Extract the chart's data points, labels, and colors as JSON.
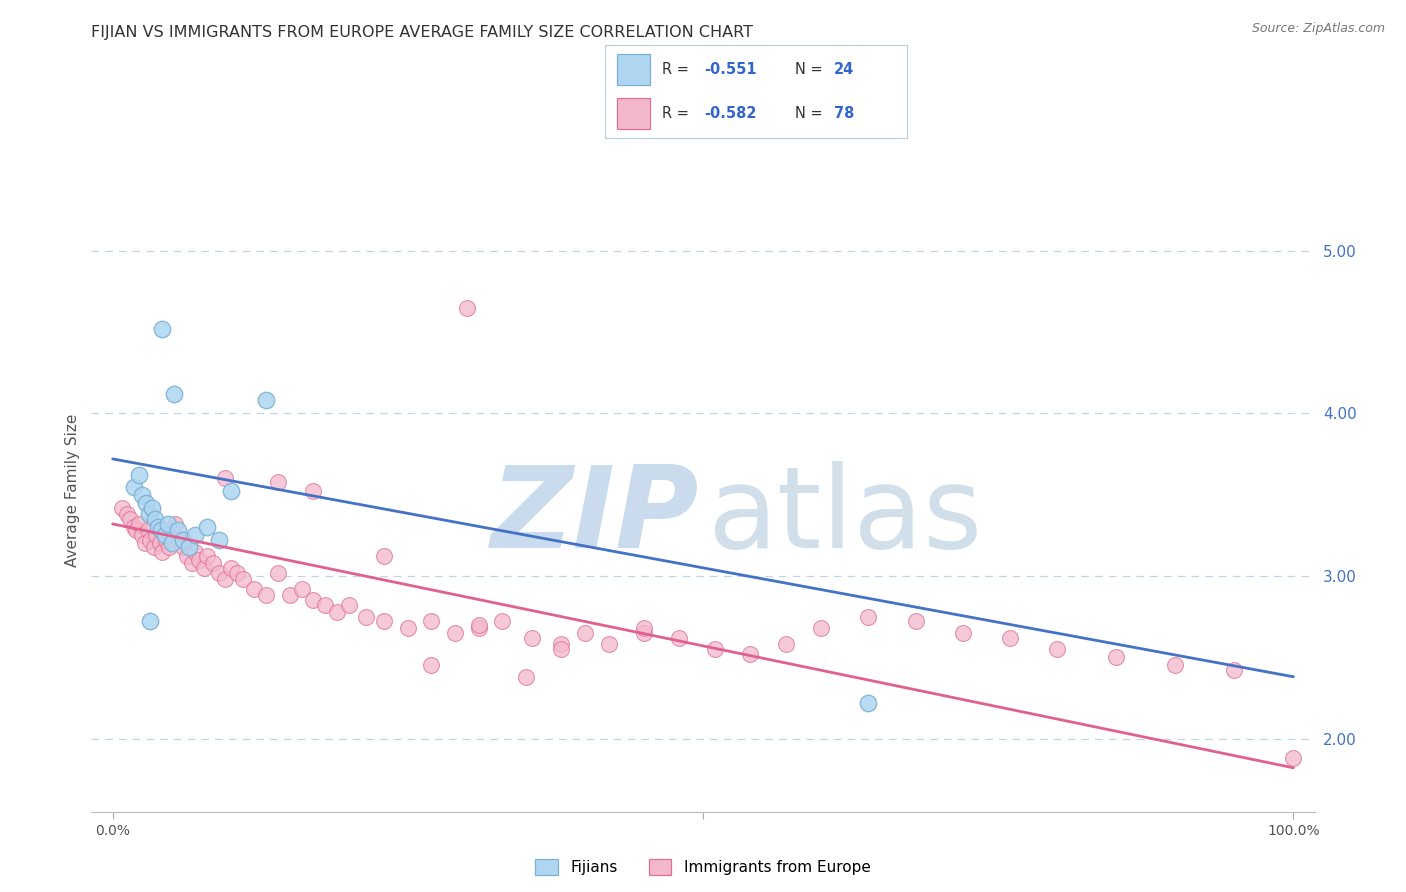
{
  "title": "FIJIAN VS IMMIGRANTS FROM EUROPE AVERAGE FAMILY SIZE CORRELATION CHART",
  "source": "Source: ZipAtlas.com",
  "ylabel": "Average Family Size",
  "yticks_right": [
    2.0,
    3.0,
    4.0,
    5.0
  ],
  "ylim": [
    1.55,
    5.5
  ],
  "xlim": [
    -0.018,
    1.018
  ],
  "fijian_color": "#7bafd4",
  "fijian_fill": "#aed6f1",
  "europe_color": "#e07095",
  "europe_fill": "#f4b8cc",
  "trendline_blue": "#4472c4",
  "trendline_pink": "#e06090",
  "watermark_zip_color": "#c5d8ec",
  "watermark_atlas_color": "#b8cfe0",
  "background_color": "#ffffff",
  "grid_color": "#c0d4e8",
  "label_fijians": "Fijians",
  "label_europe": "Immigrants from Europe",
  "blue_line_y0": 3.72,
  "blue_line_y1": 2.38,
  "pink_line_y0": 3.32,
  "pink_line_y1": 1.82,
  "fijian_x": [
    0.018,
    0.022,
    0.025,
    0.028,
    0.031,
    0.033,
    0.036,
    0.038,
    0.041,
    0.044,
    0.047,
    0.05,
    0.055,
    0.06,
    0.065,
    0.07,
    0.08,
    0.09,
    0.1,
    0.13,
    0.032,
    0.042,
    0.052,
    0.64
  ],
  "fijian_y": [
    3.55,
    3.62,
    3.5,
    3.45,
    3.38,
    3.42,
    3.35,
    3.3,
    3.28,
    3.25,
    3.32,
    3.2,
    3.28,
    3.22,
    3.18,
    3.25,
    3.3,
    3.22,
    3.52,
    4.08,
    2.72,
    4.52,
    4.12,
    2.22
  ],
  "europe_x": [
    0.008,
    0.012,
    0.015,
    0.018,
    0.02,
    0.022,
    0.025,
    0.027,
    0.03,
    0.032,
    0.035,
    0.037,
    0.04,
    0.042,
    0.045,
    0.048,
    0.05,
    0.053,
    0.056,
    0.06,
    0.063,
    0.067,
    0.07,
    0.073,
    0.077,
    0.08,
    0.085,
    0.09,
    0.095,
    0.1,
    0.105,
    0.11,
    0.12,
    0.13,
    0.14,
    0.15,
    0.16,
    0.17,
    0.18,
    0.19,
    0.2,
    0.215,
    0.23,
    0.25,
    0.27,
    0.29,
    0.31,
    0.33,
    0.355,
    0.38,
    0.4,
    0.42,
    0.45,
    0.48,
    0.51,
    0.54,
    0.57,
    0.6,
    0.64,
    0.68,
    0.72,
    0.76,
    0.8,
    0.85,
    0.9,
    0.95,
    1.0,
    0.095,
    0.14,
    0.17,
    0.23,
    0.31,
    0.38,
    0.45,
    0.3,
    0.27,
    0.35
  ],
  "europe_y": [
    3.42,
    3.38,
    3.35,
    3.3,
    3.28,
    3.32,
    3.25,
    3.2,
    3.28,
    3.22,
    3.18,
    3.25,
    3.2,
    3.15,
    3.22,
    3.18,
    3.28,
    3.32,
    3.22,
    3.18,
    3.12,
    3.08,
    3.15,
    3.1,
    3.05,
    3.12,
    3.08,
    3.02,
    2.98,
    3.05,
    3.02,
    2.98,
    2.92,
    2.88,
    3.02,
    2.88,
    2.92,
    2.85,
    2.82,
    2.78,
    2.82,
    2.75,
    2.72,
    2.68,
    2.72,
    2.65,
    2.68,
    2.72,
    2.62,
    2.58,
    2.65,
    2.58,
    2.65,
    2.62,
    2.55,
    2.52,
    2.58,
    2.68,
    2.75,
    2.72,
    2.65,
    2.62,
    2.55,
    2.5,
    2.45,
    2.42,
    1.88,
    3.6,
    3.58,
    3.52,
    3.12,
    2.7,
    2.55,
    2.68,
    4.65,
    2.45,
    2.38
  ]
}
